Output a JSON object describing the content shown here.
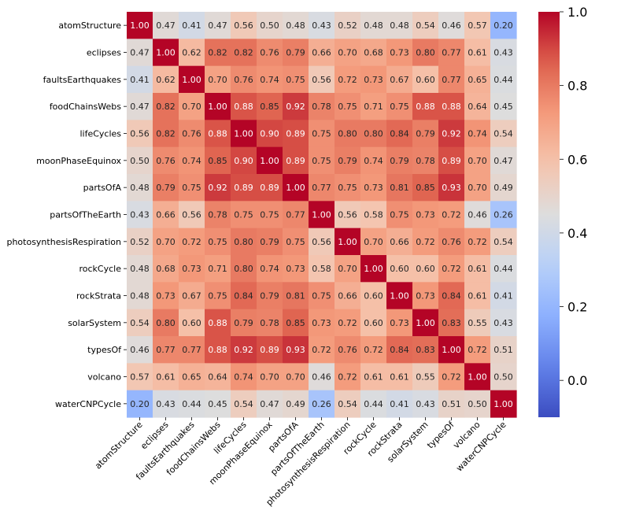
{
  "chart_data": {
    "type": "heatmap",
    "labels": [
      "atomStructure",
      "eclipses",
      "faultsEarthquakes",
      "foodChainsWebs",
      "lifeCycles",
      "moonPhaseEquinox",
      "partsOfA",
      "partsOfTheEarth",
      "photosynthesisRespiration",
      "rockCycle",
      "rockStrata",
      "solarSystem",
      "typesOf",
      "volcano",
      "waterCNPCycle"
    ],
    "matrix": [
      [
        1.0,
        0.47,
        0.41,
        0.47,
        0.56,
        0.5,
        0.48,
        0.43,
        0.52,
        0.48,
        0.48,
        0.54,
        0.46,
        0.57,
        0.2
      ],
      [
        0.47,
        1.0,
        0.62,
        0.82,
        0.82,
        0.76,
        0.79,
        0.66,
        0.7,
        0.68,
        0.73,
        0.8,
        0.77,
        0.61,
        0.43
      ],
      [
        0.41,
        0.62,
        1.0,
        0.7,
        0.76,
        0.74,
        0.75,
        0.56,
        0.72,
        0.73,
        0.67,
        0.6,
        0.77,
        0.65,
        0.44
      ],
      [
        0.47,
        0.82,
        0.7,
        1.0,
        0.88,
        0.85,
        0.92,
        0.78,
        0.75,
        0.71,
        0.75,
        0.88,
        0.88,
        0.64,
        0.45
      ],
      [
        0.56,
        0.82,
        0.76,
        0.88,
        1.0,
        0.9,
        0.89,
        0.75,
        0.8,
        0.8,
        0.84,
        0.79,
        0.92,
        0.74,
        0.54
      ],
      [
        0.5,
        0.76,
        0.74,
        0.85,
        0.9,
        1.0,
        0.89,
        0.75,
        0.79,
        0.74,
        0.79,
        0.78,
        0.89,
        0.7,
        0.47
      ],
      [
        0.48,
        0.79,
        0.75,
        0.92,
        0.89,
        0.89,
        1.0,
        0.77,
        0.75,
        0.73,
        0.81,
        0.85,
        0.93,
        0.7,
        0.49
      ],
      [
        0.43,
        0.66,
        0.56,
        0.78,
        0.75,
        0.75,
        0.77,
        1.0,
        0.56,
        0.58,
        0.75,
        0.73,
        0.72,
        0.46,
        0.26
      ],
      [
        0.52,
        0.7,
        0.72,
        0.75,
        0.8,
        0.79,
        0.75,
        0.56,
        1.0,
        0.7,
        0.66,
        0.72,
        0.76,
        0.72,
        0.54
      ],
      [
        0.48,
        0.68,
        0.73,
        0.71,
        0.8,
        0.74,
        0.73,
        0.58,
        0.7,
        1.0,
        0.6,
        0.6,
        0.72,
        0.61,
        0.44
      ],
      [
        0.48,
        0.73,
        0.67,
        0.75,
        0.84,
        0.79,
        0.81,
        0.75,
        0.66,
        0.6,
        1.0,
        0.73,
        0.84,
        0.61,
        0.41
      ],
      [
        0.54,
        0.8,
        0.6,
        0.88,
        0.79,
        0.78,
        0.85,
        0.73,
        0.72,
        0.6,
        0.73,
        1.0,
        0.83,
        0.55,
        0.43
      ],
      [
        0.46,
        0.77,
        0.77,
        0.88,
        0.92,
        0.89,
        0.93,
        0.72,
        0.76,
        0.72,
        0.84,
        0.83,
        1.0,
        0.72,
        0.51
      ],
      [
        0.57,
        0.61,
        0.65,
        0.64,
        0.74,
        0.7,
        0.7,
        0.46,
        0.72,
        0.61,
        0.61,
        0.55,
        0.72,
        1.0,
        0.5
      ],
      [
        0.2,
        0.43,
        0.44,
        0.45,
        0.54,
        0.47,
        0.49,
        0.26,
        0.54,
        0.44,
        0.41,
        0.43,
        0.51,
        0.5,
        1.0
      ]
    ],
    "value_format": "2 decimals",
    "colormap": "coolwarm",
    "color_range": [
      -0.1,
      1.0
    ],
    "colorbar": {
      "ticks": [
        0.0,
        0.2,
        0.4,
        0.6,
        0.8,
        1.0
      ],
      "tick_labels": [
        "0.0",
        "0.2",
        "0.4",
        "0.6",
        "0.8",
        "1.0"
      ],
      "position": "right"
    }
  }
}
